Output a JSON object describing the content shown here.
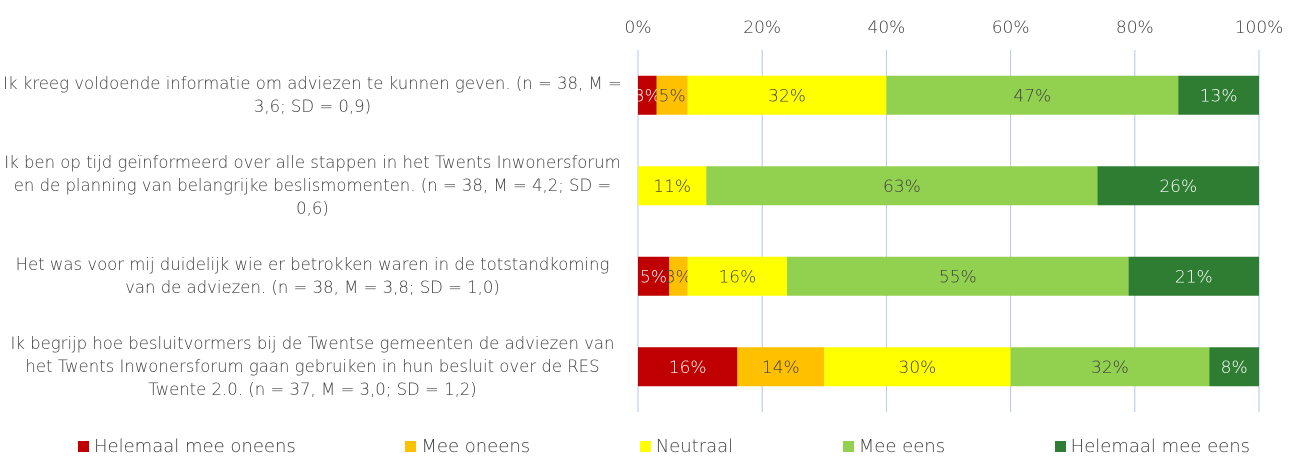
{
  "chart_data": {
    "type": "stacked-bar-horizontal",
    "categories": [
      "Ik kreeg voldoende informatie om adviezen te kunnen geven. (n = 38, M = 3,6; SD = 0,9)",
      "Ik ben op tijd geïnformeerd over alle stappen in het Twents Inwonersforum en de planning van belangrijke beslismomenten. (n = 38, M = 4,2; SD = 0,6)",
      "Het was voor mij duidelijk wie er betrokken waren in de totstandkoming van de adviezen. (n = 38, M = 3,8; SD = 1,0)",
      "Ik begrijp hoe besluitvormers bij de Twentse gemeenten de adviezen van het Twents Inwonersforum gaan gebruiken in hun besluit over de RES Twente 2.0. (n = 37, M = 3,0; SD = 1,2)"
    ],
    "series": [
      {
        "name": "Helemaal mee oneens",
        "color": "#c00000",
        "label_color": "#ffffff",
        "values": [
          3,
          0,
          5,
          16
        ],
        "value_labels": [
          "3%",
          null,
          "5%",
          "16%"
        ]
      },
      {
        "name": "Mee oneens",
        "color": "#ffc000",
        "label_color": "#404040",
        "values": [
          5,
          0,
          3,
          14
        ],
        "value_labels": [
          "5%",
          null,
          "3%",
          "14%"
        ]
      },
      {
        "name": "Neutraal",
        "color": "#ffff00",
        "label_color": "#404040",
        "values": [
          32,
          11,
          16,
          30
        ],
        "value_labels": [
          "32%",
          "11%",
          "16%",
          "30%"
        ]
      },
      {
        "name": "Mee eens",
        "color": "#92d050",
        "label_color": "#404040",
        "values": [
          47,
          63,
          55,
          32
        ],
        "value_labels": [
          "47%",
          "63%",
          "55%",
          "32%"
        ]
      },
      {
        "name": "Helemaal mee eens",
        "color": "#2e7d32",
        "label_color": "#ffffff",
        "values": [
          13,
          26,
          21,
          8
        ],
        "value_labels": [
          "13%",
          "26%",
          "21%",
          "8%"
        ]
      }
    ],
    "xlim": [
      0,
      100
    ],
    "xticks": [
      {
        "value": 0,
        "label": "0%"
      },
      {
        "value": 20,
        "label": "20%"
      },
      {
        "value": 40,
        "label": "40%"
      },
      {
        "value": 60,
        "label": "60%"
      },
      {
        "value": 80,
        "label": "80%"
      },
      {
        "value": 100,
        "label": "100%"
      }
    ],
    "grid": true,
    "legend": "bottom"
  }
}
